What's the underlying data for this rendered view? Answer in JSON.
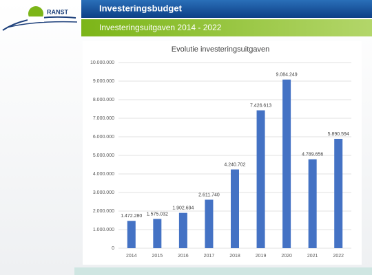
{
  "header": {
    "logo": "RANST",
    "title": "Investeringsbudget",
    "subtitle": "Investeringsuitgaven 2014 - 2022"
  },
  "chart_data": {
    "type": "bar",
    "title": "Evolutie investeringsuitgaven",
    "categories": [
      "2014",
      "2015",
      "2016",
      "2017",
      "2018",
      "2019",
      "2020",
      "2021",
      "2022"
    ],
    "values": [
      1472280,
      1575032,
      1902694,
      2611740,
      4240702,
      7426613,
      9084249,
      4789656,
      5890594
    ],
    "value_labels": [
      "1.472.280",
      "1.575.032",
      "1.902.694",
      "2.611.740",
      "4.240.702",
      "7.426.613",
      "9.084.249",
      "4.789.656",
      "5.890.594"
    ],
    "color": "#4472c4",
    "ylim": [
      0,
      10000000
    ],
    "yticks": [
      0,
      {
        "value": 1000000,
        "label": "1.000.000"
      },
      {
        "value": 2000000,
        "label": "2.000.000"
      },
      {
        "value": 3000000,
        "label": "3.000.000"
      },
      {
        "value": 4000000,
        "label": "4.000.000"
      },
      {
        "value": 5000000,
        "label": "5.000.000"
      },
      {
        "value": 6000000,
        "label": "6.000.000"
      },
      {
        "value": 7000000,
        "label": "7.000.000"
      },
      {
        "value": 8000000,
        "label": "8.000.000"
      },
      {
        "value": 9000000,
        "label": "9.000.000"
      },
      {
        "value": 10000000,
        "label": "10.000.000"
      }
    ],
    "grid": true
  }
}
